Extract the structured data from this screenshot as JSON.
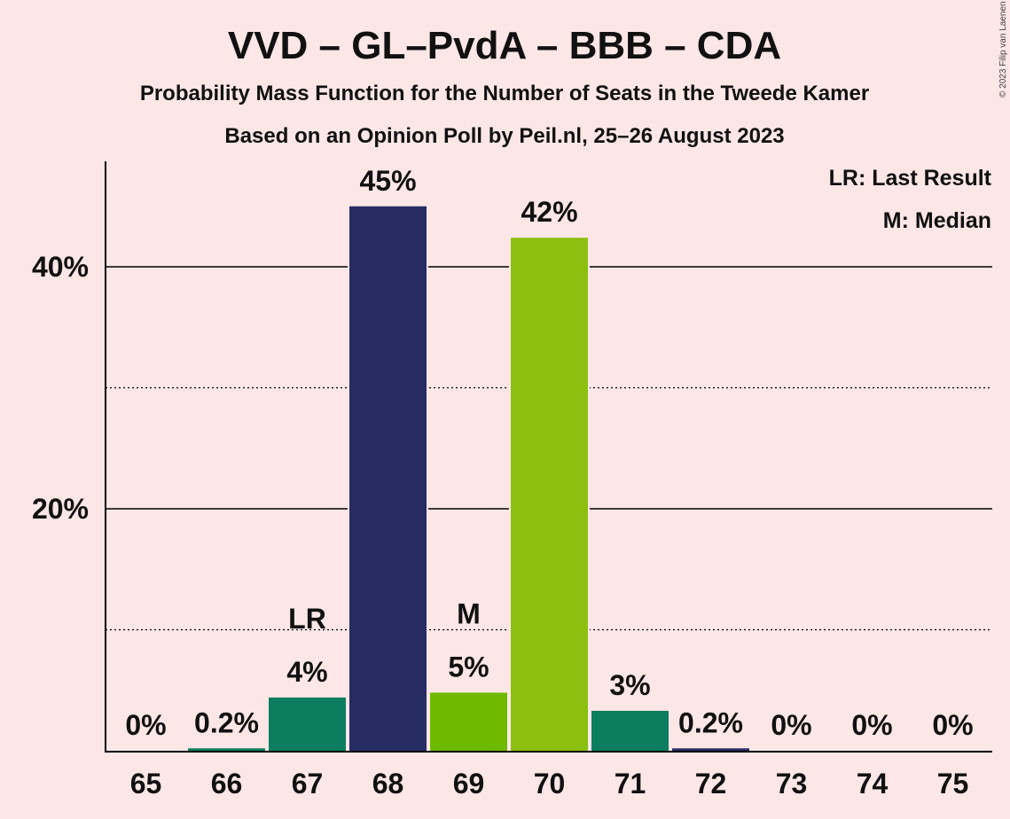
{
  "copyright": "© 2023 Filip van Laenen",
  "chart_data": {
    "type": "bar",
    "title": "VVD – GL–PvdA – BBB – CDA",
    "subtitle1": "Probability Mass Function for the Number of Seats in the Tweede Kamer",
    "subtitle2": "Based on an Opinion Poll by Peil.nl, 25–26 August 2023",
    "categories": [
      "65",
      "66",
      "67",
      "68",
      "69",
      "70",
      "71",
      "72",
      "73",
      "74",
      "75"
    ],
    "values": [
      0,
      0.2,
      4.4,
      45.0,
      4.8,
      42.4,
      3.3,
      0.2,
      0,
      0,
      0
    ],
    "labels": [
      "0%",
      "0.2%",
      "4%",
      "45%",
      "5%",
      "42%",
      "3%",
      "0.2%",
      "0%",
      "0%",
      "0%"
    ],
    "colors": [
      "#0C7D5F",
      "#0C7D5F",
      "#0C7D5F",
      "#272C62",
      "#6FBA00",
      "#8BC010",
      "#0C7D5F",
      "#272C62",
      "#0C7D5F",
      "#0C7D5F",
      "#0C7D5F"
    ],
    "markers": [
      {
        "category": "67",
        "text": "LR"
      },
      {
        "category": "69",
        "text": "M"
      }
    ],
    "ylim": [
      0,
      49
    ],
    "yticks": [
      {
        "value": 20,
        "label": "20%"
      },
      {
        "value": 40,
        "label": "40%"
      }
    ],
    "minor_gridlines": [
      10,
      30
    ],
    "legend": [
      "LR: Last Result",
      "M: Median"
    ],
    "legend_position": "top-right"
  }
}
